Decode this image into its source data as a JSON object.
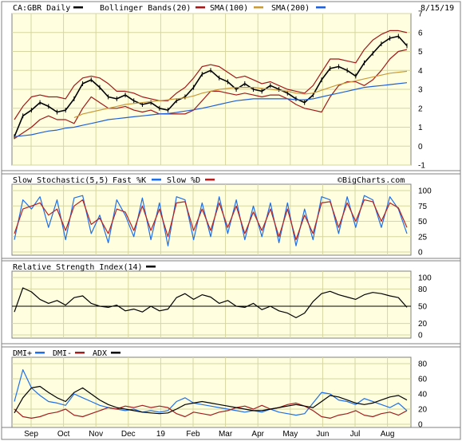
{
  "colors": {
    "panel_bg": "#ffffe0",
    "grid": "#d6d6a0",
    "price": "#000000",
    "bollinger": "#a01818",
    "sma100": "#c89a3a",
    "sma200": "#1f5fd8",
    "stoch_fast": "#1f6fe8",
    "stoch_slow": "#b82020",
    "rsi": "#000000",
    "dmi_plus": "#1f6fe8",
    "dmi_minus": "#a02020",
    "adx": "#000000"
  },
  "header": {
    "symbol": "CA:GBR Daily",
    "date": "8/15/19",
    "watermark": "©BigCharts.com"
  },
  "x_axis": {
    "months": [
      "Sep",
      "Oct",
      "Nov",
      "Dec",
      "19",
      "Feb",
      "Mar",
      "Apr",
      "May",
      "Jun",
      "Jul",
      "Aug"
    ]
  },
  "chart_data": [
    {
      "type": "line",
      "panel": "price",
      "legend": [
        "Bollinger Bands(20)",
        "SMA(100)",
        "SMA(200)"
      ],
      "ylim": [
        -1,
        7
      ],
      "yticks": [
        -1,
        0,
        1,
        2,
        3,
        4,
        5,
        6,
        7
      ],
      "series": [
        {
          "name": "CA:GBR Daily",
          "values": [
            0.5,
            1.6,
            1.9,
            2.3,
            2.1,
            1.8,
            1.9,
            2.5,
            3.3,
            3.5,
            3.1,
            2.6,
            2.5,
            2.7,
            2.4,
            2.2,
            2.3,
            2.0,
            1.9,
            2.4,
            2.6,
            3.1,
            3.8,
            4.0,
            3.6,
            3.4,
            3.0,
            3.3,
            3.0,
            2.9,
            3.2,
            3.0,
            2.8,
            2.5,
            2.3,
            2.7,
            3.5,
            4.1,
            4.2,
            4.0,
            3.7,
            4.4,
            4.9,
            5.4,
            5.7,
            5.8,
            5.3
          ]
        },
        {
          "name": "Bollinger Upper",
          "values": [
            1.4,
            2.1,
            2.6,
            2.7,
            2.6,
            2.6,
            2.5,
            3.2,
            3.6,
            3.7,
            3.6,
            3.3,
            2.9,
            2.9,
            2.8,
            2.6,
            2.5,
            2.4,
            2.4,
            2.8,
            3.1,
            3.6,
            4.2,
            4.3,
            4.2,
            3.9,
            3.6,
            3.7,
            3.5,
            3.3,
            3.4,
            3.2,
            3.0,
            2.9,
            2.8,
            3.2,
            3.9,
            4.6,
            4.6,
            4.5,
            4.4,
            5.1,
            5.6,
            5.9,
            6.1,
            6.1,
            6.0
          ]
        },
        {
          "name": "Bollinger Lower",
          "values": [
            0.4,
            0.7,
            1.0,
            1.4,
            1.6,
            1.4,
            1.4,
            1.2,
            2.0,
            2.6,
            2.3,
            2.0,
            2.0,
            2.1,
            1.9,
            1.8,
            1.9,
            1.7,
            1.7,
            1.7,
            1.7,
            1.9,
            2.4,
            2.9,
            2.9,
            2.8,
            2.7,
            2.8,
            2.7,
            2.6,
            2.7,
            2.7,
            2.5,
            2.2,
            2.0,
            1.9,
            1.8,
            2.6,
            3.2,
            3.4,
            3.4,
            3.2,
            3.5,
            4.0,
            4.6,
            5.0,
            5.1
          ]
        },
        {
          "name": "SMA(100)",
          "values": [
            null,
            null,
            null,
            null,
            null,
            null,
            null,
            1.5,
            1.7,
            1.8,
            1.9,
            2.0,
            2.1,
            2.2,
            2.25,
            2.3,
            2.35,
            2.4,
            2.45,
            2.5,
            2.55,
            2.65,
            2.8,
            2.9,
            3.0,
            3.05,
            3.1,
            3.1,
            3.1,
            3.05,
            3.0,
            2.95,
            2.9,
            2.8,
            2.75,
            2.8,
            2.95,
            3.1,
            3.25,
            3.35,
            3.45,
            3.55,
            3.65,
            3.75,
            3.85,
            3.9,
            3.95
          ]
        },
        {
          "name": "SMA(200)",
          "values": [
            0.5,
            0.55,
            0.6,
            0.7,
            0.8,
            0.85,
            0.95,
            1.0,
            1.1,
            1.2,
            1.3,
            1.4,
            1.45,
            1.5,
            1.55,
            1.6,
            1.65,
            1.7,
            1.72,
            1.78,
            1.85,
            1.92,
            2.0,
            2.1,
            2.2,
            2.3,
            2.4,
            2.45,
            2.5,
            2.5,
            2.5,
            2.5,
            2.5,
            2.45,
            2.45,
            2.5,
            2.6,
            2.7,
            2.8,
            2.9,
            3.0,
            3.1,
            3.15,
            3.2,
            3.25,
            3.3,
            3.35
          ]
        }
      ]
    },
    {
      "type": "line",
      "panel": "stochastic",
      "legend": [
        "Slow Stochastic(5,5)",
        "Fast %K",
        "Slow %D"
      ],
      "ylim": [
        0,
        100
      ],
      "yticks": [
        0,
        25,
        50,
        75,
        100
      ],
      "series": [
        {
          "name": "Fast %K",
          "values": [
            20,
            85,
            70,
            90,
            40,
            85,
            20,
            88,
            92,
            30,
            60,
            15,
            85,
            60,
            25,
            88,
            20,
            80,
            10,
            90,
            85,
            20,
            80,
            25,
            90,
            30,
            85,
            20,
            75,
            25,
            80,
            15,
            80,
            10,
            70,
            20,
            90,
            85,
            30,
            90,
            40,
            92,
            85,
            40,
            90,
            70,
            30
          ]
        },
        {
          "name": "Slow %D",
          "values": [
            30,
            70,
            75,
            80,
            60,
            70,
            35,
            75,
            85,
            45,
            55,
            30,
            70,
            65,
            35,
            75,
            35,
            70,
            25,
            80,
            82,
            35,
            70,
            35,
            80,
            40,
            75,
            30,
            65,
            35,
            70,
            25,
            70,
            20,
            60,
            30,
            80,
            82,
            40,
            80,
            50,
            85,
            82,
            50,
            80,
            72,
            40
          ]
        }
      ]
    },
    {
      "type": "line",
      "panel": "rsi",
      "legend": [
        "Relative Strength Index(14)"
      ],
      "ylim": [
        0,
        100
      ],
      "yticks": [
        0,
        20,
        50,
        80,
        100
      ],
      "reference_line": 50,
      "series": [
        {
          "name": "Relative Strength Index(14)",
          "values": [
            40,
            82,
            75,
            62,
            55,
            60,
            52,
            65,
            68,
            55,
            50,
            48,
            52,
            42,
            45,
            40,
            50,
            42,
            45,
            65,
            72,
            62,
            70,
            66,
            55,
            60,
            50,
            48,
            55,
            44,
            50,
            42,
            38,
            30,
            38,
            58,
            72,
            76,
            70,
            66,
            62,
            70,
            74,
            72,
            68,
            65,
            48
          ]
        }
      ]
    },
    {
      "type": "line",
      "panel": "dmi",
      "legend": [
        "DMI+",
        "DMI-",
        "ADX"
      ],
      "ylim": [
        0,
        80
      ],
      "yticks": [
        0,
        20,
        40,
        60,
        80
      ],
      "series": [
        {
          "name": "DMI+",
          "values": [
            30,
            72,
            48,
            38,
            30,
            28,
            25,
            40,
            35,
            30,
            25,
            22,
            20,
            18,
            20,
            16,
            18,
            16,
            18,
            30,
            35,
            28,
            26,
            24,
            22,
            20,
            18,
            16,
            18,
            16,
            20,
            16,
            14,
            12,
            14,
            28,
            42,
            40,
            32,
            30,
            26,
            34,
            30,
            26,
            22,
            28,
            18
          ]
        },
        {
          "name": "DMI-",
          "values": [
            20,
            10,
            8,
            10,
            14,
            16,
            20,
            12,
            10,
            14,
            18,
            22,
            20,
            24,
            22,
            25,
            22,
            24,
            22,
            14,
            10,
            16,
            14,
            12,
            16,
            18,
            22,
            24,
            20,
            25,
            20,
            22,
            26,
            28,
            24,
            18,
            10,
            8,
            12,
            14,
            18,
            12,
            10,
            14,
            16,
            12,
            18
          ]
        },
        {
          "name": "ADX",
          "values": [
            15,
            35,
            48,
            50,
            42,
            35,
            30,
            42,
            48,
            40,
            32,
            26,
            22,
            20,
            18,
            16,
            15,
            14,
            15,
            20,
            26,
            28,
            30,
            28,
            26,
            24,
            22,
            20,
            18,
            18,
            20,
            22,
            24,
            26,
            24,
            22,
            30,
            38,
            36,
            32,
            28,
            26,
            28,
            32,
            36,
            38,
            32
          ]
        }
      ]
    }
  ]
}
